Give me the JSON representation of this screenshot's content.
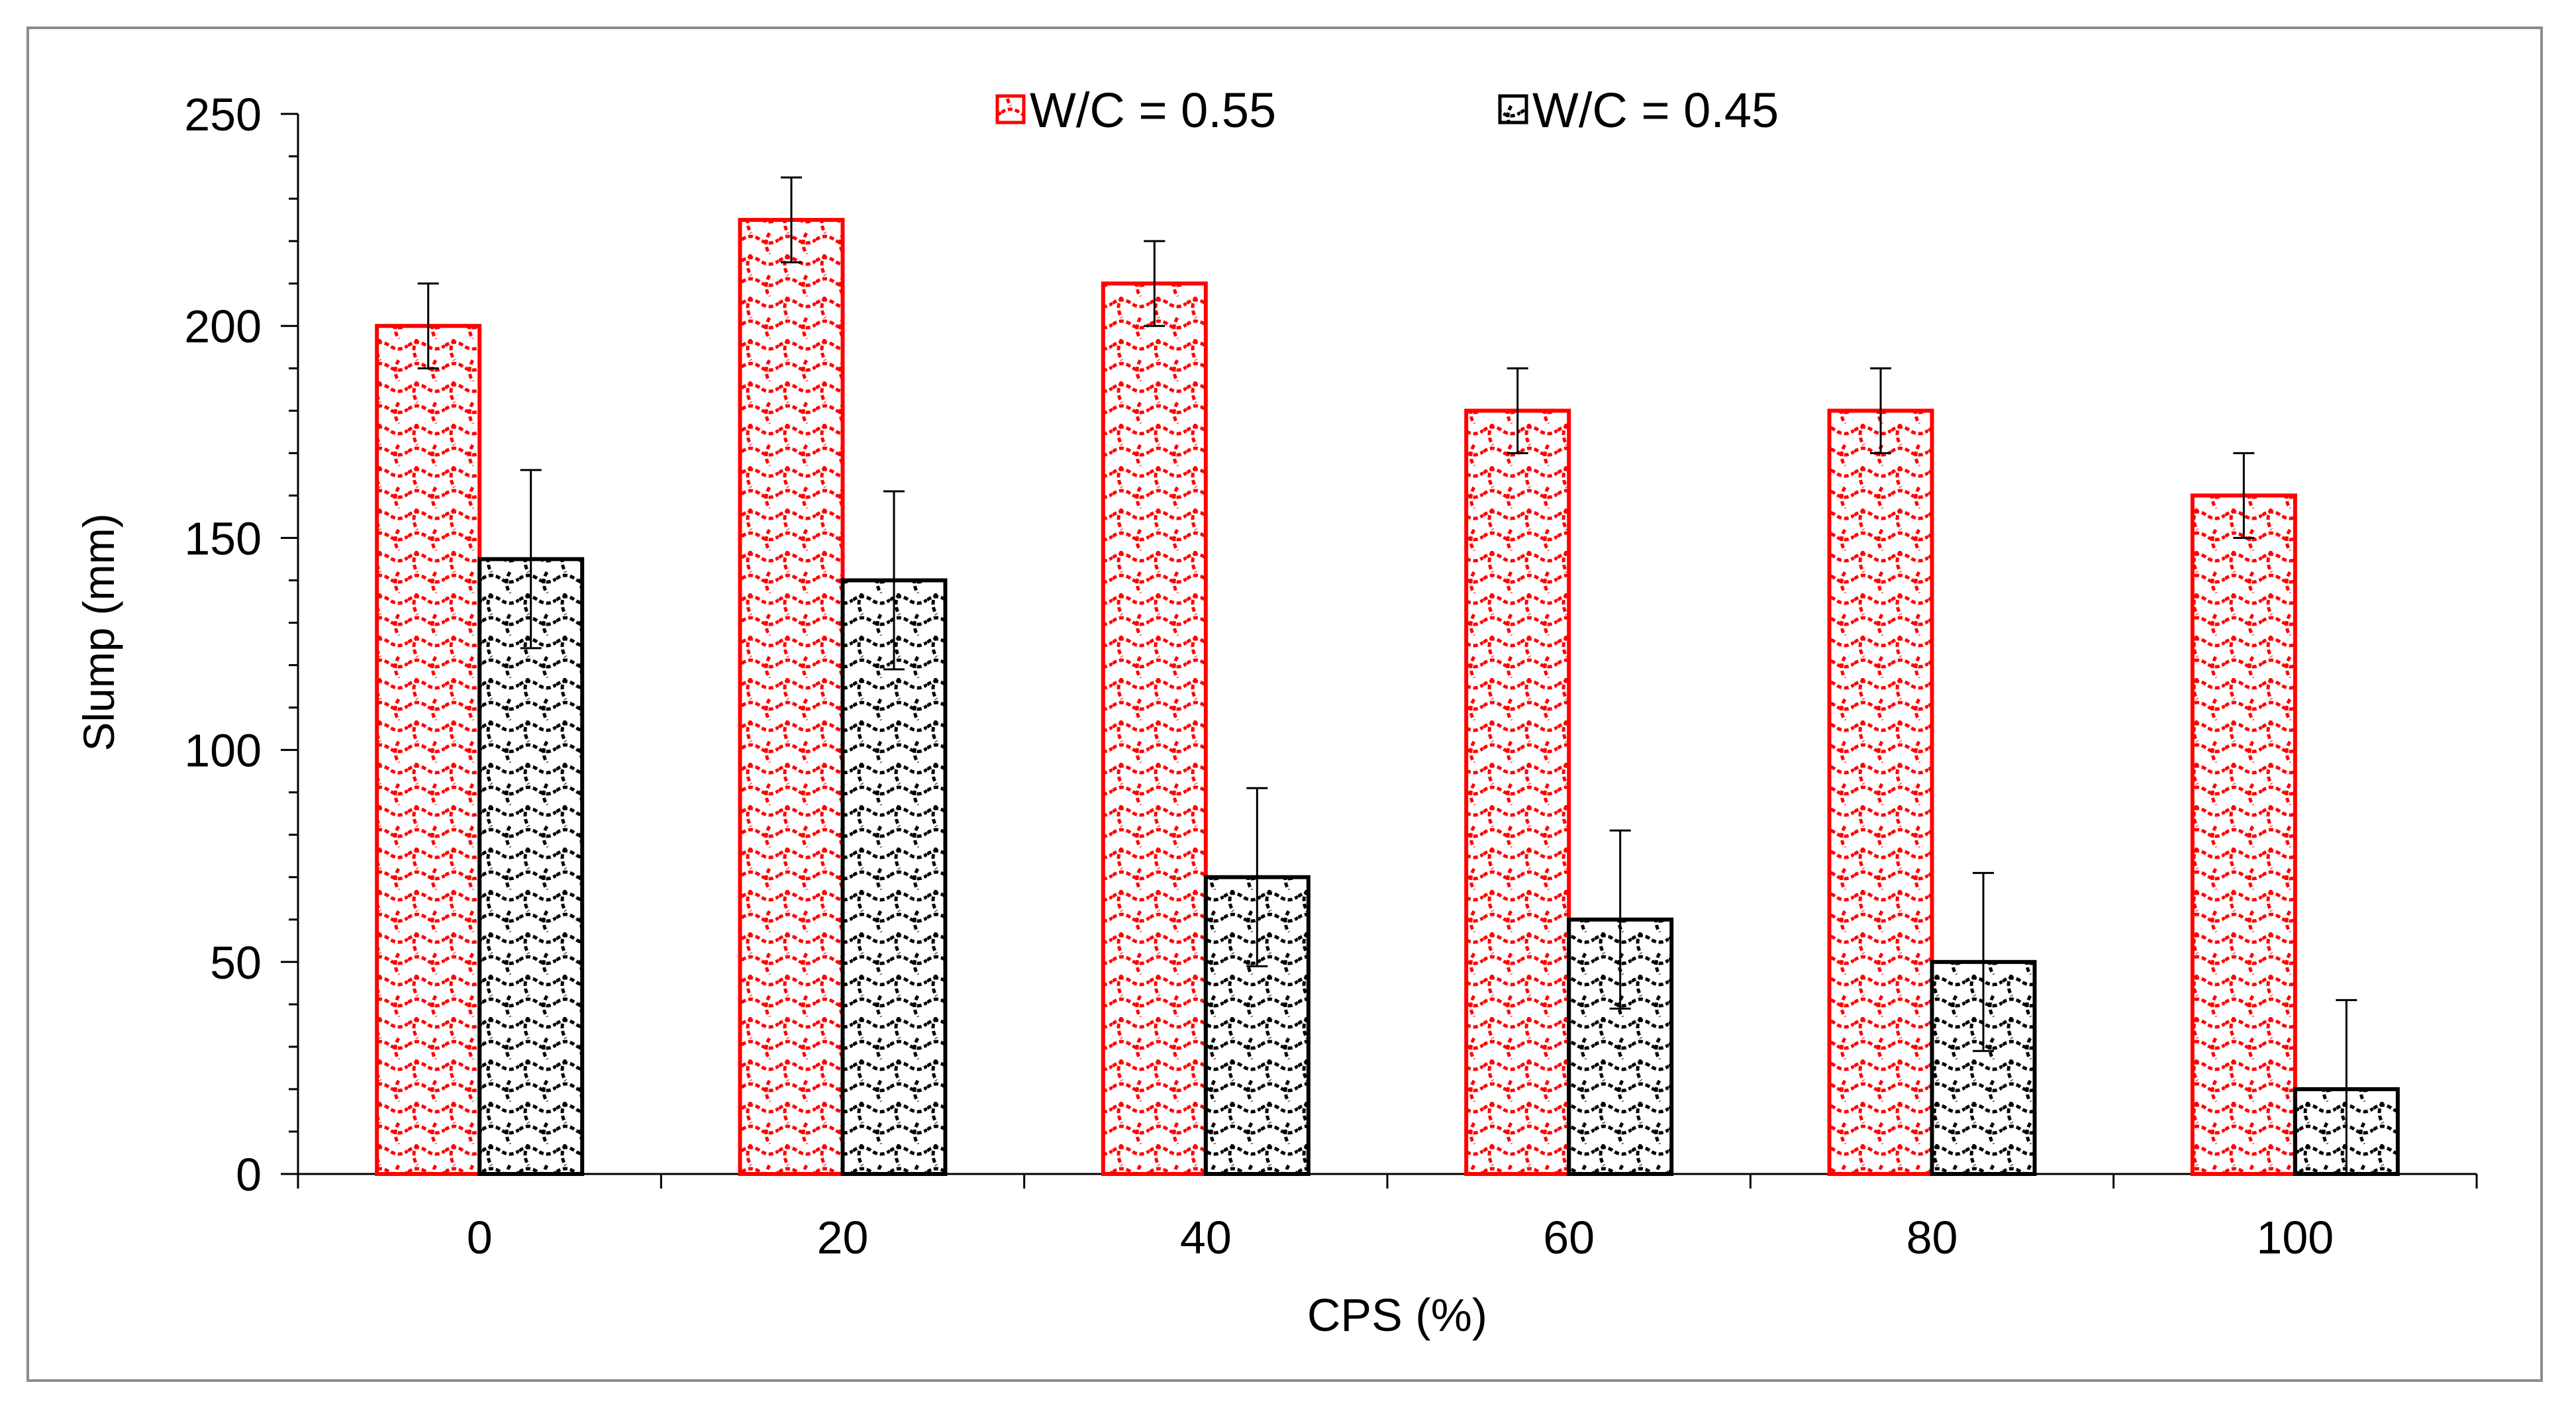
{
  "chart_data": {
    "type": "bar",
    "title": "",
    "xlabel": "CPS (%)",
    "ylabel": "Slump (mm)",
    "categories": [
      "0",
      "20",
      "40",
      "60",
      "80",
      "100"
    ],
    "ylim": [
      0,
      250
    ],
    "yticks": [
      0,
      50,
      100,
      150,
      200,
      250
    ],
    "ytick_labels": [
      "0",
      "50",
      "100",
      "150",
      "200",
      "250"
    ],
    "minor_y_step": 10,
    "grid": false,
    "legend_position": "top-center",
    "series": [
      {
        "name": "W/C = 0.55",
        "values": [
          200,
          225,
          210,
          180,
          180,
          160
        ],
        "error": [
          10,
          10,
          10,
          10,
          10,
          10
        ],
        "color": "#ff0000",
        "pattern": "zigzag-hatch"
      },
      {
        "name": "W/C = 0.45",
        "values": [
          145,
          140,
          70,
          60,
          50,
          20
        ],
        "error": [
          21,
          21,
          21,
          21,
          21,
          21
        ],
        "color": "#000000",
        "pattern": "zigzag-hatch"
      }
    ]
  }
}
